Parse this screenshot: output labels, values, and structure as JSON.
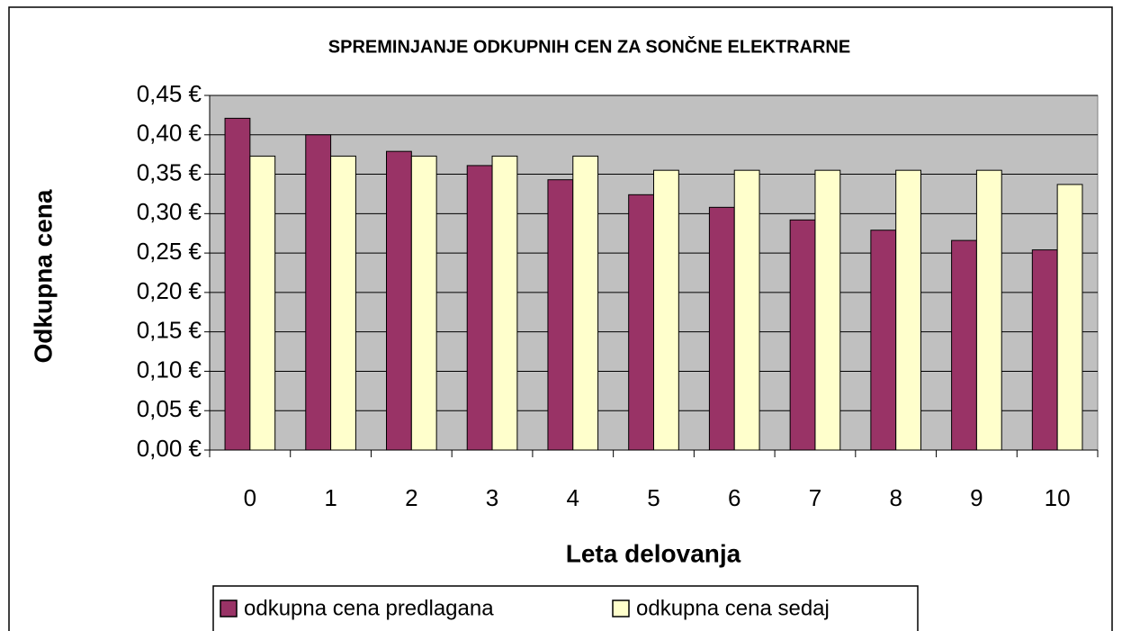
{
  "chart_data": {
    "type": "bar",
    "title": "SPREMINJANJE ODKUPNIH CEN ZA SONČNE ELEKTRARNE",
    "x_label": "Leta delovanja",
    "y_label": "Odkupna cena",
    "categories": [
      "0",
      "1",
      "2",
      "3",
      "4",
      "5",
      "6",
      "7",
      "8",
      "9",
      "10"
    ],
    "series": [
      {
        "name": "odkupna cena predlagana",
        "color": "#993366",
        "values": [
          0.421,
          0.4,
          0.379,
          0.361,
          0.343,
          0.324,
          0.308,
          0.292,
          0.279,
          0.266,
          0.254
        ]
      },
      {
        "name": "odkupna cena sedaj",
        "color": "#ffffcc",
        "values": [
          0.373,
          0.373,
          0.373,
          0.373,
          0.373,
          0.355,
          0.355,
          0.355,
          0.355,
          0.355,
          0.337
        ]
      }
    ],
    "ylim": [
      0,
      0.45
    ],
    "yticks": [
      {
        "value": 0,
        "label": "0,00 €"
      },
      {
        "value": 0.05,
        "label": "0,05 €"
      },
      {
        "value": 0.1,
        "label": "0,10 €"
      },
      {
        "value": 0.15,
        "label": "0,15 €"
      },
      {
        "value": 0.2,
        "label": "0,20 €"
      },
      {
        "value": 0.25,
        "label": "0,25 €"
      },
      {
        "value": 0.3,
        "label": "0,30 €"
      },
      {
        "value": 0.35,
        "label": "0,35 €"
      },
      {
        "value": 0.4,
        "label": "0,40 €"
      },
      {
        "value": 0.45,
        "label": "0,45 €"
      }
    ],
    "grid": true,
    "plot_background": "#c0c0c0",
    "legend": "bottom"
  }
}
